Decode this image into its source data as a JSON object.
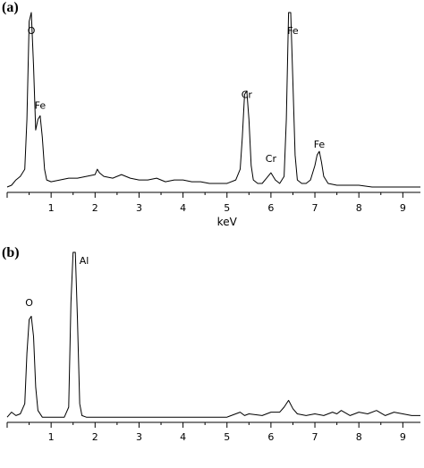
{
  "chart_data": [
    {
      "type": "line",
      "panel_label": "(a)",
      "xlabel": "keV",
      "xlim": [
        0,
        9.4
      ],
      "ylim": [
        0,
        100
      ],
      "xticks": [
        "1",
        "2",
        "3",
        "4",
        "5",
        "6",
        "7",
        "8",
        "9"
      ],
      "annotations": [
        {
          "text": "O",
          "x": 0.55,
          "y": 88
        },
        {
          "text": "Fe",
          "x": 0.75,
          "y": 46
        },
        {
          "text": "Cr",
          "x": 5.45,
          "y": 52
        },
        {
          "text": "Cr",
          "x": 6.0,
          "y": 16
        },
        {
          "text": "Fe",
          "x": 6.5,
          "y": 88
        },
        {
          "text": "Fe",
          "x": 7.1,
          "y": 24
        }
      ],
      "series": [
        {
          "x": [
            0.0,
            0.1,
            0.2,
            0.3,
            0.4,
            0.45,
            0.5,
            0.55,
            0.6,
            0.65,
            0.7,
            0.75,
            0.8,
            0.85,
            0.9,
            1.0,
            1.2,
            1.4,
            1.6,
            1.8,
            2.0,
            2.05,
            2.1,
            2.2,
            2.4,
            2.6,
            2.8,
            3.0,
            3.2,
            3.4,
            3.6,
            3.8,
            4.0,
            4.2,
            4.4,
            4.6,
            4.8,
            5.0,
            5.2,
            5.3,
            5.35,
            5.4,
            5.45,
            5.5,
            5.55,
            5.6,
            5.7,
            5.8,
            5.9,
            6.0,
            6.1,
            6.2,
            6.3,
            6.35,
            6.4,
            6.45,
            6.5,
            6.55,
            6.6,
            6.7,
            6.8,
            6.9,
            7.0,
            7.05,
            7.1,
            7.15,
            7.2,
            7.3,
            7.5,
            7.7,
            8.0,
            8.3,
            8.6,
            9.0,
            9.4
          ],
          "y": [
            2,
            3,
            6,
            8,
            12,
            40,
            95,
            100,
            70,
            34,
            40,
            42,
            30,
            12,
            6,
            5,
            6,
            7,
            7,
            8,
            9,
            12,
            10,
            8,
            7,
            9,
            7,
            6,
            6,
            7,
            5,
            6,
            6,
            5,
            5,
            4,
            4,
            4,
            6,
            12,
            30,
            54,
            56,
            40,
            14,
            6,
            4,
            4,
            7,
            10,
            6,
            4,
            8,
            40,
            100,
            100,
            60,
            20,
            6,
            4,
            4,
            6,
            14,
            20,
            22,
            16,
            8,
            4,
            3,
            3,
            3,
            2,
            2,
            2,
            2
          ]
        }
      ]
    },
    {
      "type": "line",
      "panel_label": "(b)",
      "xlabel": "",
      "xlim": [
        0,
        9.4
      ],
      "ylim": [
        0,
        100
      ],
      "xticks": [
        "1",
        "2",
        "3",
        "4",
        "5",
        "6",
        "7",
        "8",
        "9"
      ],
      "annotations": [
        {
          "text": "O",
          "x": 0.5,
          "y": 68
        },
        {
          "text": "Al",
          "x": 1.75,
          "y": 93
        }
      ],
      "series": [
        {
          "x": [
            0.0,
            0.1,
            0.2,
            0.3,
            0.4,
            0.45,
            0.5,
            0.55,
            0.6,
            0.65,
            0.7,
            0.8,
            1.0,
            1.2,
            1.3,
            1.4,
            1.45,
            1.5,
            1.55,
            1.6,
            1.65,
            1.7,
            1.8,
            2.0,
            2.5,
            3.0,
            3.5,
            4.0,
            4.5,
            5.0,
            5.3,
            5.4,
            5.5,
            5.8,
            6.0,
            6.2,
            6.3,
            6.4,
            6.5,
            6.6,
            6.8,
            7.0,
            7.2,
            7.4,
            7.5,
            7.6,
            7.8,
            8.0,
            8.2,
            8.4,
            8.6,
            8.8,
            9.0,
            9.2,
            9.4
          ],
          "y": [
            2,
            5,
            3,
            4,
            10,
            40,
            60,
            62,
            50,
            20,
            6,
            2,
            2,
            2,
            2,
            8,
            70,
            100,
            100,
            60,
            10,
            3,
            2,
            2,
            2,
            2,
            2,
            2,
            2,
            2,
            5,
            3,
            4,
            3,
            5,
            5,
            8,
            12,
            7,
            4,
            3,
            4,
            3,
            5,
            4,
            6,
            3,
            5,
            4,
            6,
            3,
            5,
            4,
            3,
            3
          ]
        }
      ]
    }
  ]
}
